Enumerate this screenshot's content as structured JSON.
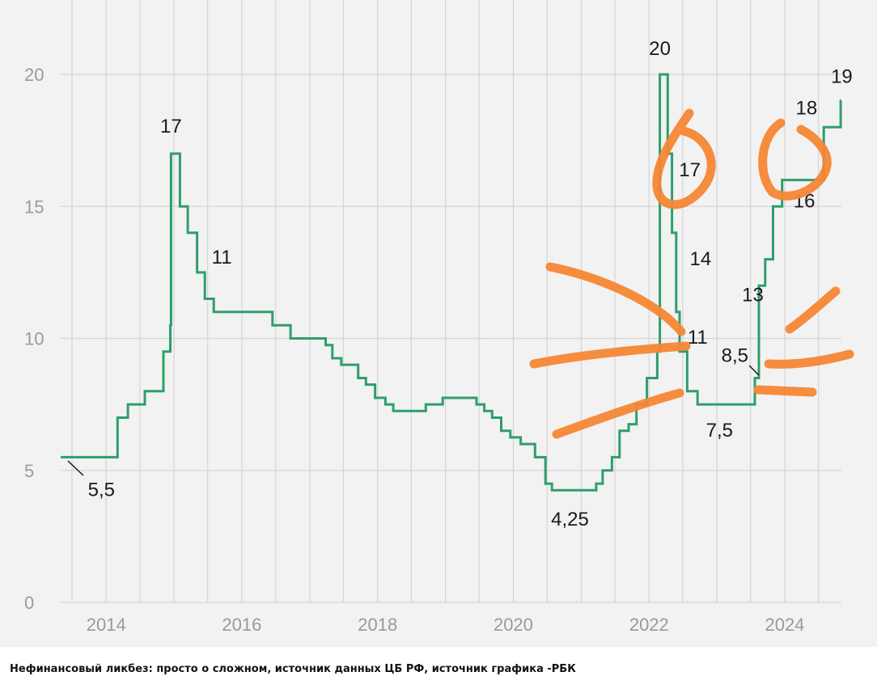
{
  "caption": "Нефинансовый ликбез: просто о сложном, источник данных ЦБ РФ, источник графика -РБК",
  "colors": {
    "background": "#f2f2f2",
    "line": "#2e9e6b",
    "grid": "#d4d4d4",
    "annotation": "#f58634"
  },
  "chart_data": {
    "type": "line",
    "line_shape": "step",
    "title": "",
    "xlabel": "",
    "ylabel": "",
    "xlim": [
      "2013-05-01",
      "2024-11-01"
    ],
    "ylim": [
      0,
      20
    ],
    "yticks": [
      0,
      5,
      10,
      15,
      20
    ],
    "xticks": [
      "2014",
      "2016",
      "2018",
      "2020",
      "2022",
      "2024"
    ],
    "grid": true,
    "series": [
      {
        "points": [
          [
            "2013-05-01",
            5.5
          ],
          [
            "2013-09-13",
            5.5
          ],
          [
            "2014-03-03",
            7.0
          ],
          [
            "2014-04-28",
            7.5
          ],
          [
            "2014-07-28",
            8.0
          ],
          [
            "2014-11-05",
            9.5
          ],
          [
            "2014-12-12",
            10.5
          ],
          [
            "2014-12-16",
            17.0
          ],
          [
            "2015-02-02",
            15.0
          ],
          [
            "2015-03-16",
            14.0
          ],
          [
            "2015-05-05",
            12.5
          ],
          [
            "2015-06-16",
            11.5
          ],
          [
            "2015-08-03",
            11.0
          ],
          [
            "2016-06-14",
            10.5
          ],
          [
            "2016-09-19",
            10.0
          ],
          [
            "2017-03-27",
            9.75
          ],
          [
            "2017-05-02",
            9.25
          ],
          [
            "2017-06-19",
            9.0
          ],
          [
            "2017-09-18",
            8.5
          ],
          [
            "2017-10-30",
            8.25
          ],
          [
            "2017-12-18",
            7.75
          ],
          [
            "2018-02-12",
            7.5
          ],
          [
            "2018-03-26",
            7.25
          ],
          [
            "2018-09-17",
            7.5
          ],
          [
            "2018-12-17",
            7.75
          ],
          [
            "2019-06-17",
            7.5
          ],
          [
            "2019-07-29",
            7.25
          ],
          [
            "2019-09-09",
            7.0
          ],
          [
            "2019-10-28",
            6.5
          ],
          [
            "2019-12-16",
            6.25
          ],
          [
            "2020-02-10",
            6.0
          ],
          [
            "2020-04-27",
            5.5
          ],
          [
            "2020-06-22",
            4.5
          ],
          [
            "2020-07-27",
            4.25
          ],
          [
            "2021-03-22",
            4.5
          ],
          [
            "2021-04-26",
            5.0
          ],
          [
            "2021-06-15",
            5.5
          ],
          [
            "2021-07-26",
            6.5
          ],
          [
            "2021-09-13",
            6.75
          ],
          [
            "2021-10-25",
            7.5
          ],
          [
            "2021-12-20",
            8.5
          ],
          [
            "2022-02-14",
            9.5
          ],
          [
            "2022-02-28",
            20.0
          ],
          [
            "2022-04-11",
            17.0
          ],
          [
            "2022-05-04",
            14.0
          ],
          [
            "2022-05-27",
            11.0
          ],
          [
            "2022-06-14",
            9.5
          ],
          [
            "2022-07-25",
            8.0
          ],
          [
            "2022-09-19",
            7.5
          ],
          [
            "2023-07-24",
            8.5
          ],
          [
            "2023-08-15",
            12.0
          ],
          [
            "2023-09-18",
            13.0
          ],
          [
            "2023-10-30",
            15.0
          ],
          [
            "2023-12-18",
            16.0
          ],
          [
            "2024-07-29",
            18.0
          ],
          [
            "2024-10-28",
            19.0
          ],
          [
            "2024-11-01",
            19.0
          ]
        ]
      }
    ],
    "data_labels": [
      {
        "text": "5,5",
        "x": "2013-06-15",
        "y": 5.5
      },
      {
        "text": "17",
        "x": "2014-12-16",
        "y": 17.0
      },
      {
        "text": "11",
        "x": "2015-09-15",
        "y": 11.0
      },
      {
        "text": "4,25",
        "x": "2020-11-01",
        "y": 4.25
      },
      {
        "text": "20",
        "x": "2022-02-28",
        "y": 20.0
      },
      {
        "text": "17",
        "x": "2022-04-11",
        "y": 17.0
      },
      {
        "text": "14",
        "x": "2022-05-04",
        "y": 14.0
      },
      {
        "text": "11",
        "x": "2022-05-27",
        "y": 11.0
      },
      {
        "text": "7,5",
        "x": "2023-01-15",
        "y": 7.5
      },
      {
        "text": "8,5",
        "x": "2023-07-24",
        "y": 8.5
      },
      {
        "text": "13",
        "x": "2023-09-18",
        "y": 13.0
      },
      {
        "text": "16",
        "x": "2023-12-18",
        "y": 16.0
      },
      {
        "text": "18",
        "x": "2024-07-29",
        "y": 18.0
      },
      {
        "text": "19",
        "x": "2024-10-28",
        "y": 19.0
      }
    ]
  }
}
